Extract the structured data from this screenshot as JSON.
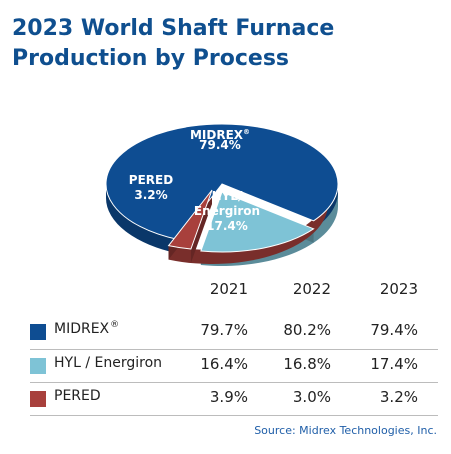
{
  "title_line1": "2023 World Shaft Furnace",
  "title_line2": "Production by Process",
  "colors": {
    "title": "#0f4f8f",
    "midrex": "#0e4d92",
    "hyl": "#7ec3d6",
    "pered": "#a8403c",
    "source": "#1f5ea8"
  },
  "chart_data": {
    "type": "pie",
    "title": "2023 World Shaft Furnace Production by Process",
    "slices": [
      {
        "name": "MIDREX",
        "mark": "®",
        "value": 79.4,
        "label": "79.4%",
        "color": "#0e4d92"
      },
      {
        "name": "HYL/ Energiron",
        "value": 17.4,
        "label": "17.4%",
        "color": "#7ec3d6"
      },
      {
        "name": "PERED",
        "value": 3.2,
        "label": "3.2%",
        "color": "#a8403c"
      }
    ]
  },
  "table": {
    "years": [
      "2021",
      "2022",
      "2023"
    ],
    "rows": [
      {
        "name": "MIDREX",
        "mark": "®",
        "color": "#0e4d92",
        "values": [
          "79.7%",
          "80.2%",
          "79.4%"
        ]
      },
      {
        "name": "HYL / Energiron",
        "mark": "",
        "color": "#7ec3d6",
        "values": [
          "16.4%",
          "16.8%",
          "17.4%"
        ]
      },
      {
        "name": "PERED",
        "mark": "",
        "color": "#a8403c",
        "values": [
          "3.9%",
          "3.0%",
          "3.2%"
        ]
      }
    ]
  },
  "source": "Source: Midrex Technologies, Inc."
}
